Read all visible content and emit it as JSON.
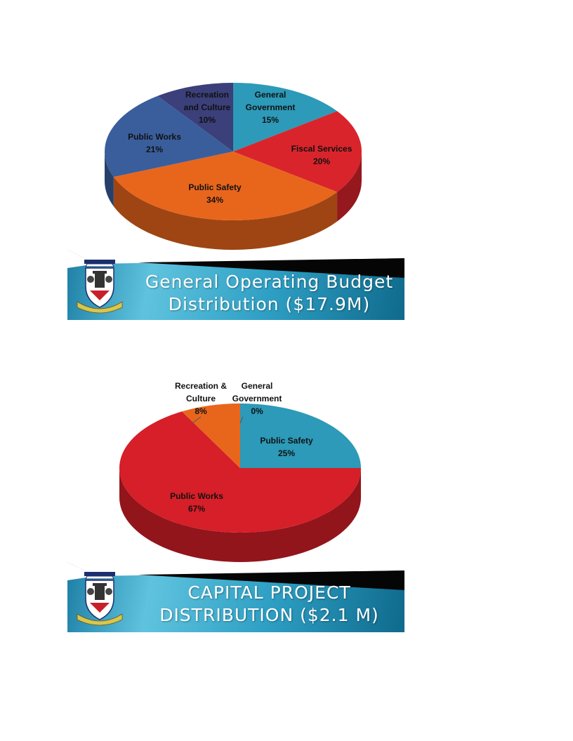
{
  "colors": {
    "general_government": "#2c9ab8",
    "fiscal_services": "#d9242c",
    "public_safety_op": "#e8661c",
    "public_works_op": "#3a5e9c",
    "recreation_op": "#3b3f7a",
    "public_safety_cap": "#2c9ab8",
    "public_works_cap": "#d61f28",
    "recreation_cap": "#e8661c",
    "banner_dark": "#0f6a8c",
    "banner_light": "#5fc3de"
  },
  "charts": [
    {
      "banner": {
        "title_line1": "General Operating Budget",
        "title_line2": "Distribution ($17.9M)"
      },
      "labels": [
        {
          "line1": "Recreation",
          "line2": "and Culture",
          "pct": "10%"
        },
        {
          "line1": "General",
          "line2": "Government",
          "pct": "15%"
        },
        {
          "line1": "Fiscal Services",
          "pct": "20%"
        },
        {
          "line1": "Public Works",
          "pct": "21%"
        },
        {
          "line1": "Public Safety",
          "pct": "34%"
        }
      ]
    },
    {
      "banner": {
        "title_line1": "CAPITAL PROJECT",
        "title_line2": "DISTRIBUTION ($2.1 M)"
      },
      "labels": [
        {
          "line1": "Recreation &",
          "line2": "Culture",
          "pct": "8%"
        },
        {
          "line1": "General",
          "line2": "Government",
          "pct": "0%"
        },
        {
          "line1": "Public Safety",
          "pct": "25%"
        },
        {
          "line1": "Public Works",
          "pct": "67%"
        }
      ]
    }
  ],
  "chart_data": [
    {
      "type": "pie",
      "title": "General Operating Budget Distribution ($17.9M)",
      "categories": [
        "General Government",
        "Fiscal Services",
        "Public Safety",
        "Public Works",
        "Recreation and Culture"
      ],
      "values": [
        15,
        20,
        34,
        21,
        10
      ],
      "unit": "%",
      "colors": [
        "#2c9ab8",
        "#d9242c",
        "#e8661c",
        "#3a5e9c",
        "#3b3f7a"
      ]
    },
    {
      "type": "pie",
      "title": "CAPITAL PROJECT DISTRIBUTION ($2.1 M)",
      "categories": [
        "General Government",
        "Public Safety",
        "Public Works",
        "Recreation & Culture"
      ],
      "values": [
        0,
        25,
        67,
        8
      ],
      "unit": "%",
      "colors": [
        "#2c9ab8",
        "#2c9ab8",
        "#d61f28",
        "#e8661c"
      ]
    }
  ]
}
